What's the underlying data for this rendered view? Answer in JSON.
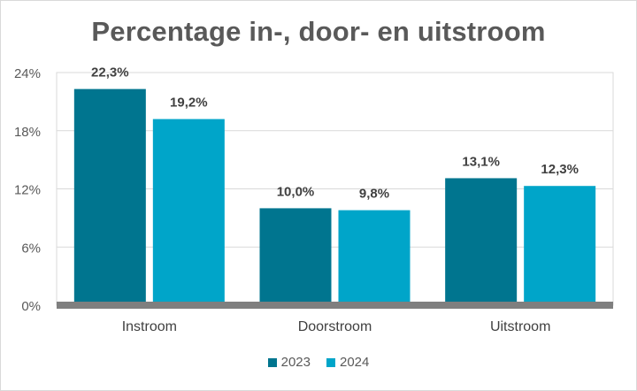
{
  "chart_data": {
    "type": "bar",
    "title": "Percentage in-, door- en uitstroom",
    "categories": [
      "Instroom",
      "Doorstroom",
      "Uitstroom"
    ],
    "series": [
      {
        "name": "2023",
        "values": [
          22.3,
          10.0,
          13.1
        ],
        "labels": [
          "22,3%",
          "10,0%",
          "13,1%"
        ],
        "color": "#00758f"
      },
      {
        "name": "2024",
        "values": [
          19.2,
          9.8,
          12.3
        ],
        "labels": [
          "19,2%",
          "9,8%",
          "12,3%"
        ],
        "color": "#00a5c9"
      }
    ],
    "yticks": [
      0,
      6,
      12,
      18,
      24
    ],
    "ytick_labels": [
      "0%",
      "6%",
      "12%",
      "18%",
      "24%"
    ],
    "ylim": [
      0,
      24
    ],
    "grid": true,
    "legend_position": "bottom",
    "xlabel": "",
    "ylabel": ""
  }
}
